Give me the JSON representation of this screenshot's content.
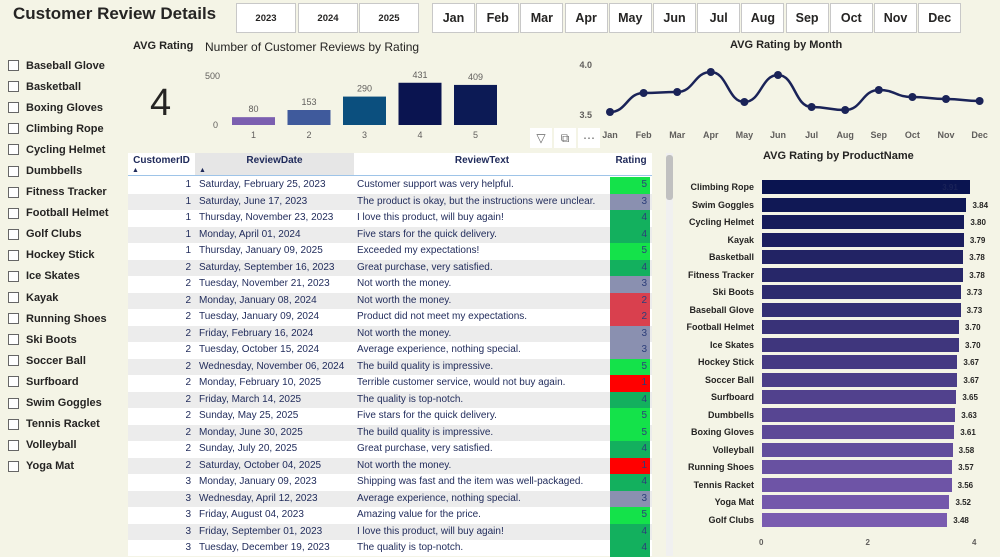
{
  "header": {
    "title": "Customer Review Details"
  },
  "years": [
    "2023",
    "2024",
    "2025"
  ],
  "months": [
    "Jan",
    "Feb",
    "Mar",
    "Apr",
    "May",
    "Jun",
    "Jul",
    "Aug",
    "Sep",
    "Oct",
    "Nov",
    "Dec"
  ],
  "products": [
    "Baseball Glove",
    "Basketball",
    "Boxing Gloves",
    "Climbing Rope",
    "Cycling Helmet",
    "Dumbbells",
    "Fitness Tracker",
    "Football Helmet",
    "Golf Clubs",
    "Hockey Stick",
    "Ice Skates",
    "Kayak",
    "Running Shoes",
    "Ski Boots",
    "Soccer Ball",
    "Surfboard",
    "Swim Goggles",
    "Tennis Racket",
    "Volleyball",
    "Yoga Mat"
  ],
  "kpi": {
    "label": "AVG Rating",
    "value": "4"
  },
  "visual_icons": [
    "filter-icon",
    "focus-mode-icon",
    "more-options-icon"
  ],
  "table": {
    "columns": [
      "CustomerID",
      "ReviewDate",
      "ReviewText",
      "Rating"
    ],
    "rating_colors": {
      "1": "#ff0000",
      "2": "#d9404e",
      "3": "#8a90b0",
      "4": "#13b05e",
      "5": "#14e24a"
    },
    "rows": [
      [
        "1",
        "Saturday, February 25, 2023",
        "Customer support was very helpful.",
        "5"
      ],
      [
        "1",
        "Saturday, June 17, 2023",
        "The product is okay, but the instructions were unclear.",
        "3"
      ],
      [
        "1",
        "Thursday, November 23, 2023",
        "I love this product, will buy again!",
        "4"
      ],
      [
        "1",
        "Monday, April 01, 2024",
        "Five stars for the quick delivery.",
        "4"
      ],
      [
        "1",
        "Thursday, January 09, 2025",
        "Exceeded my expectations!",
        "5"
      ],
      [
        "2",
        "Saturday, September 16, 2023",
        "Great purchase, very satisfied.",
        "4"
      ],
      [
        "2",
        "Tuesday, November 21, 2023",
        "Not worth the money.",
        "3"
      ],
      [
        "2",
        "Monday, January 08, 2024",
        "Not worth the money.",
        "2"
      ],
      [
        "2",
        "Tuesday, January 09, 2024",
        "Product did not meet my expectations.",
        "2"
      ],
      [
        "2",
        "Friday, February 16, 2024",
        "Not worth the money.",
        "3"
      ],
      [
        "2",
        "Tuesday, October 15, 2024",
        "Average experience, nothing special.",
        "3"
      ],
      [
        "2",
        "Wednesday, November 06, 2024",
        "The build quality is impressive.",
        "5"
      ],
      [
        "2",
        "Monday, February 10, 2025",
        "Terrible customer service, would not buy again.",
        "1"
      ],
      [
        "2",
        "Friday, March 14, 2025",
        "The quality is top-notch.",
        "4"
      ],
      [
        "2",
        "Sunday, May 25, 2025",
        "Five stars for the quick delivery.",
        "5"
      ],
      [
        "2",
        "Monday, June 30, 2025",
        "The build quality is impressive.",
        "5"
      ],
      [
        "2",
        "Sunday, July 20, 2025",
        "Great purchase, very satisfied.",
        "4"
      ],
      [
        "2",
        "Saturday, October 04, 2025",
        "Not worth the money.",
        "1"
      ],
      [
        "3",
        "Monday, January 09, 2023",
        "Shipping was fast and the item was well-packaged.",
        "4"
      ],
      [
        "3",
        "Wednesday, April 12, 2023",
        "Average experience, nothing special.",
        "3"
      ],
      [
        "3",
        "Friday, August 04, 2023",
        "Amazing value for the price.",
        "5"
      ],
      [
        "3",
        "Friday, September 01, 2023",
        "I love this product, will buy again!",
        "4"
      ],
      [
        "3",
        "Tuesday, December 19, 2023",
        "The quality is top-notch.",
        "4"
      ]
    ]
  },
  "chart_data": [
    {
      "type": "bar",
      "title": "Number of Customer Reviews by Rating",
      "categories": [
        "1",
        "2",
        "3",
        "4",
        "5"
      ],
      "values": [
        80,
        153,
        290,
        431,
        409
      ],
      "yticks": [
        "0",
        "500"
      ],
      "ylim": [
        0,
        500
      ],
      "colors": [
        "#7b5fb0",
        "#3f5a9c",
        "#0b4f7e",
        "#0a1450",
        "#0c1a55"
      ]
    },
    {
      "type": "line",
      "title": "AVG Rating by Month",
      "categories": [
        "Jan",
        "Feb",
        "Mar",
        "Apr",
        "May",
        "Jun",
        "Jul",
        "Aug",
        "Sep",
        "Oct",
        "Nov",
        "Dec"
      ],
      "values": [
        3.52,
        3.71,
        3.72,
        3.92,
        3.62,
        3.89,
        3.57,
        3.54,
        3.74,
        3.67,
        3.65,
        3.63
      ],
      "yticks": [
        "3.5",
        "4.0"
      ],
      "ylim": [
        3.5,
        4.0
      ],
      "color": "#1a2358"
    },
    {
      "type": "bar",
      "orientation": "horizontal",
      "title": "AVG Rating by ProductName",
      "categories": [
        "Climbing Rope",
        "Swim Goggles",
        "Cycling Helmet",
        "Kayak",
        "Basketball",
        "Fitness Tracker",
        "Ski Boots",
        "Baseball Glove",
        "Football Helmet",
        "Ice Skates",
        "Hockey Stick",
        "Soccer Ball",
        "Surfboard",
        "Dumbbells",
        "Boxing Gloves",
        "Volleyball",
        "Running Shoes",
        "Tennis Racket",
        "Yoga Mat",
        "Golf Clubs"
      ],
      "values": [
        3.91,
        3.84,
        3.8,
        3.79,
        3.78,
        3.78,
        3.73,
        3.73,
        3.7,
        3.7,
        3.67,
        3.67,
        3.65,
        3.63,
        3.61,
        3.58,
        3.57,
        3.56,
        3.52,
        3.48
      ],
      "labels": [
        "3.91",
        "3.84",
        "3.80",
        "3.79",
        "3.78",
        "3.78",
        "3.73",
        "3.73",
        "3.70",
        "3.70",
        "3.67",
        "3.67",
        "3.65",
        "3.63",
        "3.61",
        "3.58",
        "3.57",
        "3.56",
        "3.52",
        "3.48"
      ],
      "xticks": [
        "0",
        "2",
        "4"
      ],
      "xlim": [
        0,
        4
      ],
      "color_start": "#0a1450",
      "color_end": "#7a5cb0"
    }
  ]
}
